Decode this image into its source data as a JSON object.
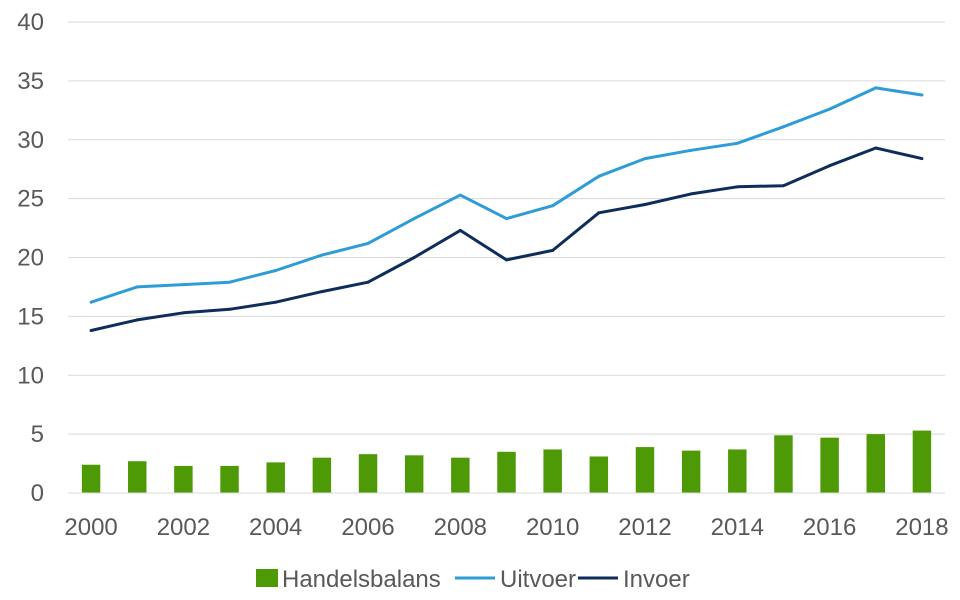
{
  "chart_data": {
    "type": "bar+line",
    "title": "",
    "xlabel": "",
    "ylabel": "",
    "ylim": [
      0,
      40
    ],
    "yticks": [
      "0",
      "5",
      "10",
      "15",
      "20",
      "25",
      "30",
      "35",
      "40"
    ],
    "x": [
      "2000",
      "2001",
      "2002",
      "2003",
      "2004",
      "2005",
      "2006",
      "2007",
      "2008",
      "2009",
      "2010",
      "2011",
      "2012",
      "2013",
      "2014",
      "2015",
      "2016",
      "2017",
      "2018"
    ],
    "xtick_labels": [
      "2000",
      "2002",
      "2004",
      "2006",
      "2008",
      "2010",
      "2012",
      "2014",
      "2016",
      "2018"
    ],
    "grid": true,
    "legend_position": "bottom",
    "series": [
      {
        "name": "Handelsbalans",
        "kind": "bar",
        "color": "#4E9A06",
        "values": [
          2.4,
          2.7,
          2.3,
          2.3,
          2.6,
          3.0,
          3.3,
          3.2,
          3.0,
          3.5,
          3.7,
          3.1,
          3.9,
          3.6,
          3.7,
          4.9,
          4.7,
          5.0,
          5.3
        ]
      },
      {
        "name": "Uitvoer",
        "kind": "line",
        "color": "#2E9CD6",
        "values": [
          16.2,
          17.5,
          17.7,
          17.9,
          18.9,
          20.2,
          21.2,
          23.3,
          25.3,
          23.3,
          24.4,
          26.9,
          28.4,
          29.1,
          29.7,
          31.1,
          32.6,
          34.4,
          33.8
        ]
      },
      {
        "name": "Invoer",
        "kind": "line",
        "color": "#0F2D5A",
        "values": [
          13.8,
          14.7,
          15.3,
          15.6,
          16.2,
          17.1,
          17.9,
          20.0,
          22.3,
          19.8,
          20.6,
          23.8,
          24.5,
          25.4,
          26.0,
          26.1,
          27.8,
          29.3,
          28.4
        ]
      }
    ]
  }
}
